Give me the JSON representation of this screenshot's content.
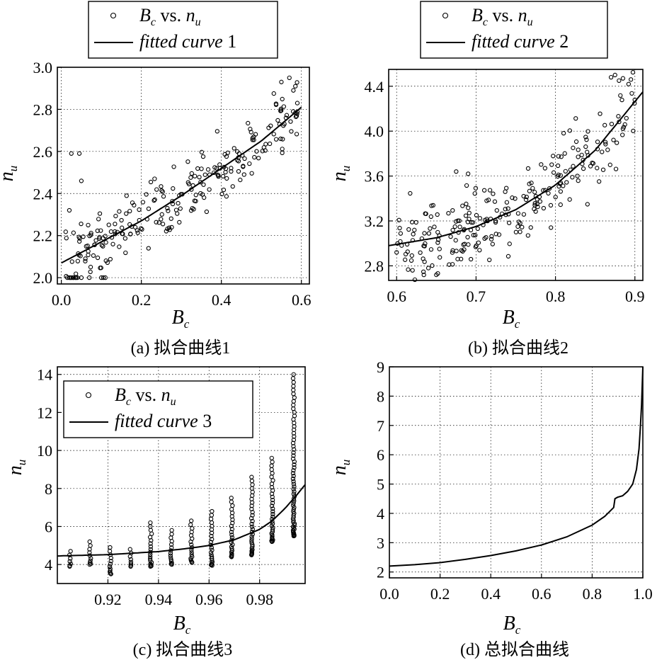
{
  "chart_data": [
    {
      "id": "a",
      "type": "scatter",
      "caption": "(a) 拟合曲线1",
      "xlabel": "B",
      "xlabel_sub": "c",
      "ylabel": "n",
      "ylabel_sub": "u",
      "xlim": [
        -0.01,
        0.62
      ],
      "ylim": [
        1.97,
        3.0
      ],
      "xticks": [
        0.0,
        0.2,
        0.4,
        0.6
      ],
      "xtick_labels": [
        "0.0",
        "0.2",
        "0.4",
        "0.6"
      ],
      "yticks": [
        2.0,
        2.2,
        2.4,
        2.6,
        2.8,
        3.0
      ],
      "ytick_labels": [
        "2.0",
        "2.2",
        "2.4",
        "2.6",
        "2.8",
        "3.0"
      ],
      "grid": true,
      "legend": {
        "position": "above",
        "scatter_label": {
          "main": "B",
          "sub": "c",
          "mid": " vs. ",
          "main2": "n",
          "sub2": "u"
        },
        "line_label": {
          "text": "fitted curve",
          "num": " 1"
        }
      },
      "fit": {
        "x": [
          0.0,
          0.1,
          0.2,
          0.3,
          0.4,
          0.5,
          0.6
        ],
        "y": [
          2.07,
          2.17,
          2.27,
          2.39,
          2.52,
          2.65,
          2.81
        ]
      },
      "scatter": {
        "x_range": [
          0.01,
          0.59
        ],
        "noise": 0.12,
        "count": 240,
        "floor_value": 2.0,
        "extra_points": [
          [
            0.015,
            2.0
          ],
          [
            0.02,
            2.0
          ],
          [
            0.025,
            2.0
          ],
          [
            0.03,
            2.0
          ],
          [
            0.035,
            2.0
          ],
          [
            0.04,
            2.0
          ],
          [
            0.05,
            2.0
          ],
          [
            0.07,
            2.0
          ],
          [
            0.1,
            2.0
          ],
          [
            0.105,
            2.0
          ],
          [
            0.11,
            2.0
          ],
          [
            0.025,
            2.59
          ],
          [
            0.045,
            2.59
          ],
          [
            0.05,
            2.46
          ],
          [
            0.02,
            2.32
          ],
          [
            0.55,
            2.93
          ],
          [
            0.57,
            2.95
          ],
          [
            0.585,
            2.91
          ],
          [
            0.58,
            2.89
          ]
        ]
      }
    },
    {
      "id": "b",
      "type": "scatter",
      "caption": "(b) 拟合曲线2",
      "xlabel": "B",
      "xlabel_sub": "c",
      "ylabel": "n",
      "ylabel_sub": "u",
      "xlim": [
        0.59,
        0.91
      ],
      "ylim": [
        2.67,
        4.55
      ],
      "xticks": [
        0.6,
        0.7,
        0.8,
        0.9
      ],
      "xtick_labels": [
        "0.6",
        "0.7",
        "0.8",
        "0.9"
      ],
      "yticks": [
        2.8,
        3.2,
        3.6,
        4.0,
        4.4
      ],
      "ytick_labels": [
        "2.8",
        "3.2",
        "3.6",
        "4.0",
        "4.4"
      ],
      "grid": true,
      "legend": {
        "position": "above",
        "scatter_label": {
          "main": "B",
          "sub": "c",
          "mid": " vs. ",
          "main2": "n",
          "sub2": "u"
        },
        "line_label": {
          "text": "fitted curve",
          "num": " 2"
        }
      },
      "fit": {
        "x": [
          0.59,
          0.65,
          0.7,
          0.75,
          0.8,
          0.85,
          0.91
        ],
        "y": [
          2.98,
          3.05,
          3.15,
          3.3,
          3.52,
          3.83,
          4.35
        ]
      },
      "scatter": {
        "x_range": [
          0.6,
          0.9
        ],
        "noise": 0.26,
        "count": 250,
        "floor_value": null,
        "extra_points": [
          [
            0.87,
            4.48
          ],
          [
            0.875,
            4.5
          ],
          [
            0.88,
            4.45
          ],
          [
            0.885,
            4.47
          ],
          [
            0.895,
            4.46
          ],
          [
            0.62,
            2.76
          ],
          [
            0.65,
            2.72
          ],
          [
            0.64,
            2.78
          ],
          [
            0.675,
            3.64
          ],
          [
            0.69,
            3.62
          ],
          [
            0.6,
            2.92
          ]
        ]
      }
    },
    {
      "id": "c",
      "type": "scatter",
      "caption": "(c) 拟合曲线3",
      "xlabel": "B",
      "xlabel_sub": "c",
      "ylabel": "n",
      "ylabel_sub": "u",
      "xlim": [
        0.9,
        0.998
      ],
      "ylim": [
        3.0,
        14.4
      ],
      "xticks": [
        0.92,
        0.94,
        0.96,
        0.98
      ],
      "xtick_labels": [
        "0.92",
        "0.94",
        "0.96",
        "0.98"
      ],
      "yticks": [
        4,
        6,
        8,
        10,
        12,
        14
      ],
      "ytick_labels": [
        "4",
        "6",
        "8",
        "10",
        "12",
        "14"
      ],
      "grid": true,
      "legend": {
        "position": "inside-top-left",
        "scatter_label": {
          "main": "B",
          "sub": "c",
          "mid": " vs. ",
          "main2": "n",
          "sub2": "u"
        },
        "line_label": {
          "text": "fitted curve",
          "num": " 3"
        }
      },
      "fit": {
        "x": [
          0.9,
          0.92,
          0.94,
          0.95,
          0.96,
          0.97,
          0.98,
          0.985,
          0.99,
          0.994,
          0.998
        ],
        "y": [
          4.45,
          4.52,
          4.68,
          4.82,
          5.0,
          5.3,
          5.85,
          6.3,
          6.95,
          7.55,
          8.2
        ]
      },
      "columns": [
        {
          "x": 0.905,
          "min": 3.9,
          "max": 4.7
        },
        {
          "x": 0.913,
          "min": 4.0,
          "max": 5.2
        },
        {
          "x": 0.921,
          "min": 3.5,
          "max": 4.9
        },
        {
          "x": 0.929,
          "min": 3.9,
          "max": 4.8
        },
        {
          "x": 0.937,
          "min": 3.9,
          "max": 6.2
        },
        {
          "x": 0.945,
          "min": 4.0,
          "max": 5.8
        },
        {
          "x": 0.953,
          "min": 4.1,
          "max": 6.3
        },
        {
          "x": 0.961,
          "min": 3.95,
          "max": 6.8
        },
        {
          "x": 0.969,
          "min": 4.4,
          "max": 7.5
        },
        {
          "x": 0.977,
          "min": 4.5,
          "max": 8.6
        },
        {
          "x": 0.985,
          "min": 5.2,
          "max": 9.6
        },
        {
          "x": 0.9935,
          "min": 5.5,
          "max": 14.0
        }
      ]
    },
    {
      "id": "d",
      "type": "line",
      "caption": "(d) 总拟合曲线",
      "xlabel": "B",
      "xlabel_sub": "c",
      "ylabel": "n",
      "ylabel_sub": "u",
      "xlim": [
        0.0,
        1.0
      ],
      "ylim": [
        1.8,
        9.0
      ],
      "xticks": [
        0.0,
        0.2,
        0.4,
        0.6,
        0.8,
        1.0
      ],
      "xtick_labels": [
        "0.0",
        "0.2",
        "0.4",
        "0.6",
        "0.8",
        "1.0"
      ],
      "yticks": [
        2,
        3,
        4,
        5,
        6,
        7,
        8,
        9
      ],
      "ytick_labels": [
        "2",
        "3",
        "4",
        "5",
        "6",
        "7",
        "8",
        "9"
      ],
      "grid": true,
      "series": [
        {
          "name": "total fitted curve",
          "x": [
            0.0,
            0.1,
            0.2,
            0.3,
            0.4,
            0.5,
            0.6,
            0.7,
            0.8,
            0.85,
            0.885,
            0.89,
            0.9,
            0.92,
            0.94,
            0.96,
            0.975,
            0.985,
            0.99,
            0.995,
            1.0
          ],
          "y": [
            2.2,
            2.25,
            2.32,
            2.43,
            2.56,
            2.72,
            2.92,
            3.2,
            3.6,
            3.9,
            4.2,
            4.5,
            4.55,
            4.6,
            4.75,
            5.0,
            5.5,
            6.2,
            6.9,
            7.7,
            9.0
          ]
        }
      ]
    }
  ]
}
